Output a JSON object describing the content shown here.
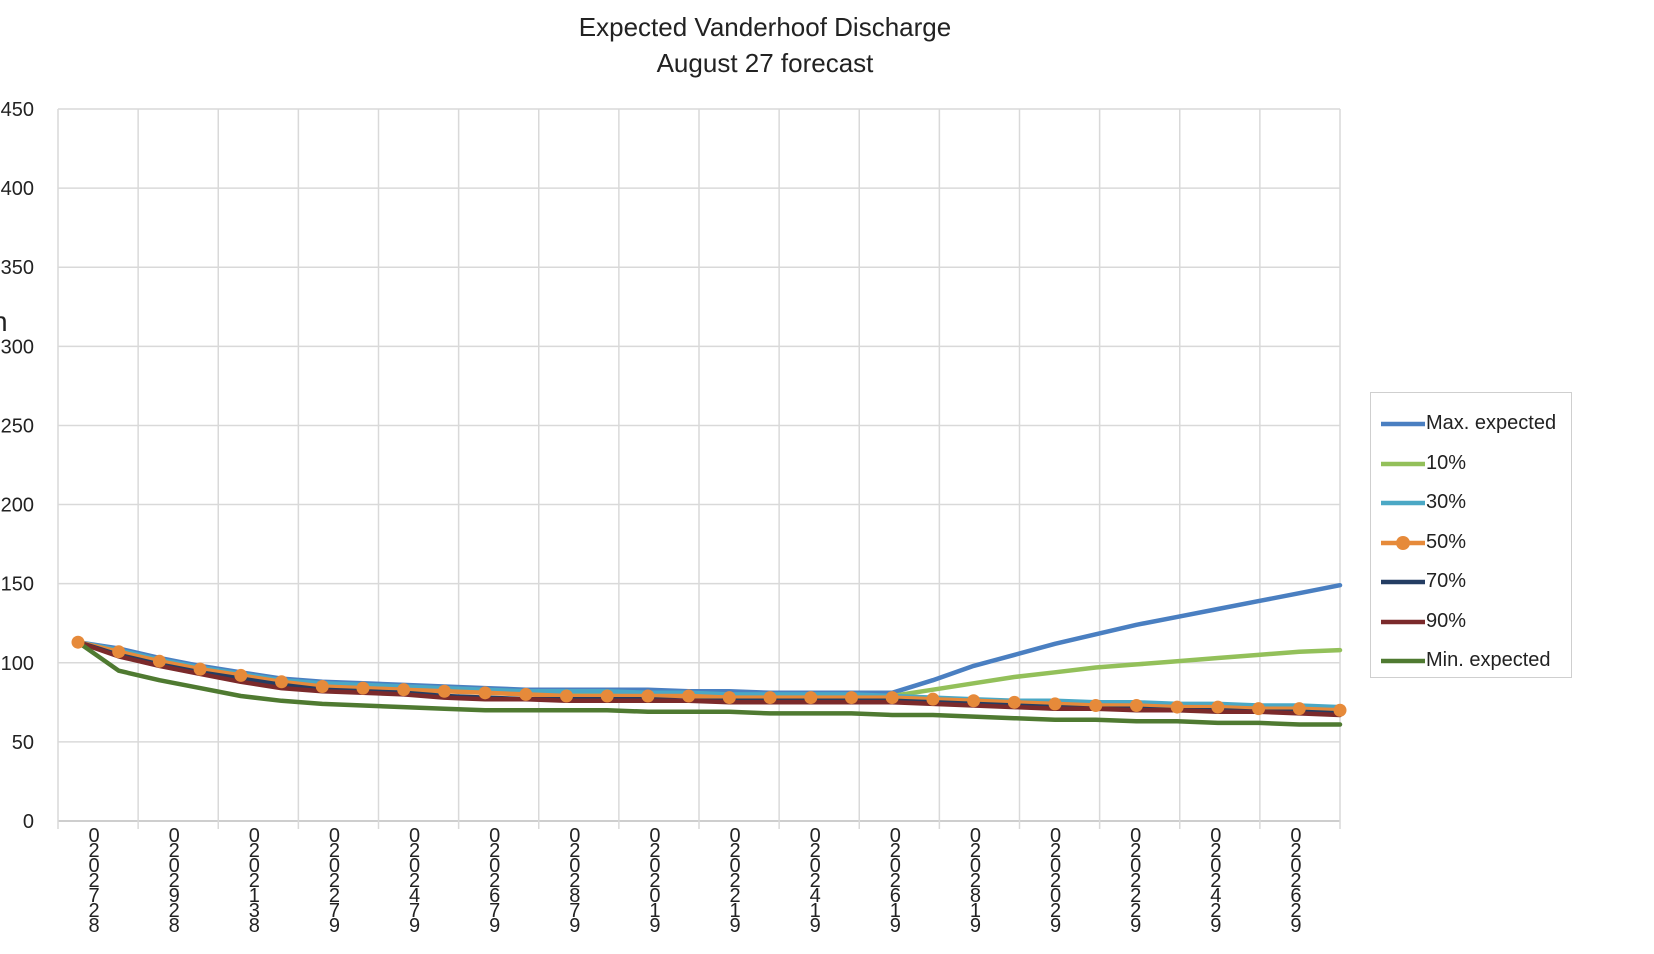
{
  "chart_data": {
    "type": "line",
    "title": "Expected Vanderhoof Discharge",
    "subtitle": "August 27 forecast",
    "ylabel_visible_fragment": "n",
    "ylim": [
      0,
      450
    ],
    "yticks": [
      0,
      50,
      100,
      150,
      200,
      250,
      300,
      350,
      400,
      450
    ],
    "grid": true,
    "legend_position": "right",
    "x_tick_labels": [
      "0\n2\n0\n2\n7\n2\n8",
      "0\n2\n0\n2\n9\n2\n8",
      "0\n2\n0\n2\n1\n3\n8",
      "0\n2\n0\n2\n2\n7\n9",
      "0\n2\n0\n2\n4\n7\n9",
      "0\n2\n0\n2\n6\n7\n9",
      "0\n2\n0\n2\n8\n7\n9",
      "0\n2\n0\n2\n0\n1\n9",
      "0\n2\n0\n2\n2\n1\n9",
      "0\n2\n0\n2\n4\n1\n9",
      "0\n2\n0\n2\n6\n1\n9",
      "0\n2\n0\n2\n8\n1\n9",
      "0\n2\n0\n2\n0\n2\n9",
      "0\n2\n0\n2\n2\n2\n9",
      "0\n2\n0\n2\n4\n2\n9",
      "0\n2\n0\n2\n6\n2\n9"
    ],
    "x": [
      0,
      1,
      2,
      3,
      4,
      5,
      6,
      7,
      8,
      9,
      10,
      11,
      12,
      13,
      14,
      15,
      16,
      17,
      18,
      19,
      20,
      21,
      22,
      23,
      24,
      25,
      26,
      27,
      28,
      29,
      30,
      31
    ],
    "series": [
      {
        "name": "Max. expected",
        "color": "#4a7fc1",
        "marker": false,
        "values": [
          113,
          109,
          103,
          98,
          94,
          90,
          88,
          87,
          86,
          85,
          84,
          83,
          83,
          83,
          83,
          82,
          82,
          81,
          81,
          81,
          81,
          89,
          98,
          105,
          112,
          118,
          124,
          129,
          134,
          139,
          144,
          149
        ]
      },
      {
        "name": "10%",
        "color": "#93c05a",
        "marker": false,
        "values": [
          113,
          107,
          101,
          96,
          92,
          88,
          86,
          85,
          84,
          83,
          82,
          81,
          80,
          80,
          80,
          80,
          79,
          79,
          79,
          79,
          79,
          83,
          87,
          91,
          94,
          97,
          99,
          101,
          103,
          105,
          107,
          108
        ]
      },
      {
        "name": "30%",
        "color": "#4ba8c5",
        "marker": false,
        "values": [
          113,
          108,
          102,
          97,
          93,
          89,
          87,
          86,
          85,
          84,
          83,
          82,
          82,
          82,
          81,
          81,
          80,
          80,
          80,
          80,
          79,
          78,
          77,
          76,
          76,
          75,
          75,
          74,
          74,
          73,
          73,
          72
        ]
      },
      {
        "name": "50%",
        "color": "#e68a3a",
        "marker": true,
        "values": [
          113,
          107,
          101,
          96,
          92,
          88,
          85,
          84,
          83,
          82,
          81,
          80,
          79,
          79,
          79,
          79,
          78,
          78,
          78,
          78,
          78,
          77,
          76,
          75,
          74,
          73,
          73,
          72,
          72,
          71,
          71,
          70
        ]
      },
      {
        "name": "70%",
        "color": "#243d63",
        "marker": false,
        "values": [
          113,
          105,
          99,
          94,
          90,
          86,
          83,
          82,
          81,
          79,
          78,
          77,
          77,
          77,
          77,
          76,
          76,
          76,
          76,
          76,
          76,
          75,
          74,
          73,
          72,
          71,
          71,
          70,
          70,
          69,
          69,
          68
        ]
      },
      {
        "name": "90%",
        "color": "#7b2a2b",
        "marker": false,
        "values": [
          113,
          104,
          98,
          93,
          88,
          84,
          82,
          81,
          80,
          78,
          77,
          77,
          76,
          76,
          76,
          76,
          75,
          75,
          75,
          75,
          75,
          74,
          73,
          72,
          71,
          71,
          70,
          70,
          69,
          69,
          68,
          67
        ]
      },
      {
        "name": "Min. expected",
        "color": "#4f7a31",
        "marker": false,
        "values": [
          113,
          95,
          89,
          84,
          79,
          76,
          74,
          73,
          72,
          71,
          70,
          70,
          70,
          70,
          69,
          69,
          69,
          68,
          68,
          68,
          67,
          67,
          66,
          65,
          64,
          64,
          63,
          63,
          62,
          62,
          61,
          61
        ]
      }
    ]
  }
}
